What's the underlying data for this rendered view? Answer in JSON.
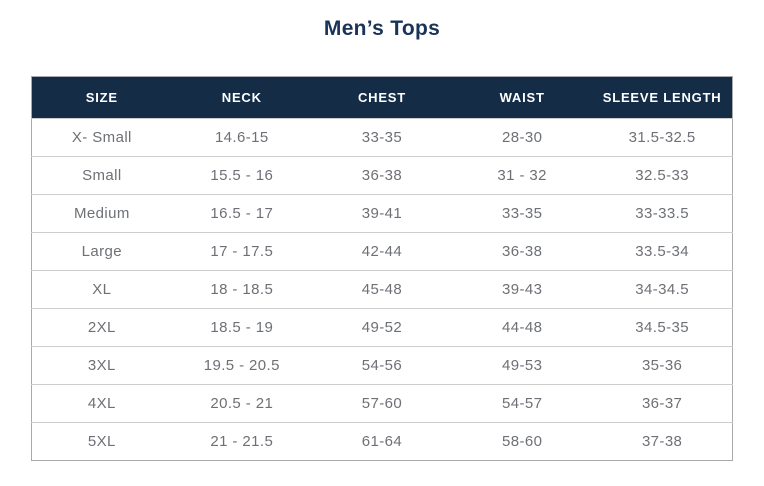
{
  "chart_data": {
    "type": "table",
    "title": "Men’s Tops",
    "columns": [
      "SIZE",
      "NECK",
      "CHEST",
      "WAIST",
      "SLEEVE LENGTH"
    ],
    "rows": [
      [
        "X- Small",
        "14.6-15",
        "33-35",
        "28-30",
        "31.5-32.5"
      ],
      [
        "Small",
        "15.5 - 16",
        "36-38",
        "31 - 32",
        "32.5-33"
      ],
      [
        "Medium",
        "16.5 - 17",
        "39-41",
        "33-35",
        "33-33.5"
      ],
      [
        "Large",
        "17 - 17.5",
        "42-44",
        "36-38",
        "33.5-34"
      ],
      [
        "XL",
        "18 - 18.5",
        "45-48",
        "39-43",
        "34-34.5"
      ],
      [
        "2XL",
        "18.5 - 19",
        "49-52",
        "44-48",
        "34.5-35"
      ],
      [
        "3XL",
        "19.5 - 20.5",
        "54-56",
        "49-53",
        "35-36"
      ],
      [
        "4XL",
        "20.5 - 21",
        "57-60",
        "54-57",
        "36-37"
      ],
      [
        "5XL",
        "21 - 21.5",
        "61-64",
        "58-60",
        "37-38"
      ]
    ],
    "layout": {
      "legend": "none",
      "grid": "horizontal-row-separators",
      "header_position": "top"
    }
  },
  "colors": {
    "header_background": "#152c47",
    "header_text": "#ffffff",
    "title_text": "#1a3457",
    "body_text": "#6d7075",
    "row_border": "#cdcdcd",
    "outer_border": "#a9a9a9",
    "page_background": "#ffffff"
  }
}
